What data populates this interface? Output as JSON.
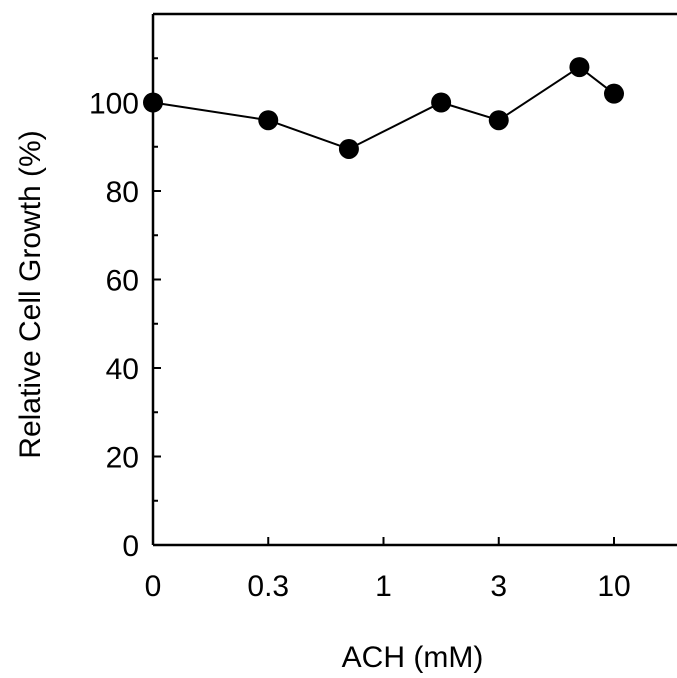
{
  "chart_data": {
    "type": "line",
    "title": "",
    "xlabel": "ACH (mM)",
    "ylabel": "Relative Cell Growth (%)",
    "x_ticks": [
      "0",
      "0.3",
      "1",
      "3",
      "10"
    ],
    "y_ticks": [
      "0",
      "20",
      "40",
      "60",
      "80",
      "100"
    ],
    "ylim": [
      0,
      120
    ],
    "grid": false,
    "legend": "none",
    "point_color": "#000000",
    "line_color": "#000000",
    "series": [
      {
        "x_positions": [
          0,
          0.5,
          0.85,
          1.25,
          1.5,
          1.85,
          2.0
        ],
        "values": [
          100,
          96,
          89.5,
          100,
          96,
          108,
          102
        ]
      }
    ]
  }
}
